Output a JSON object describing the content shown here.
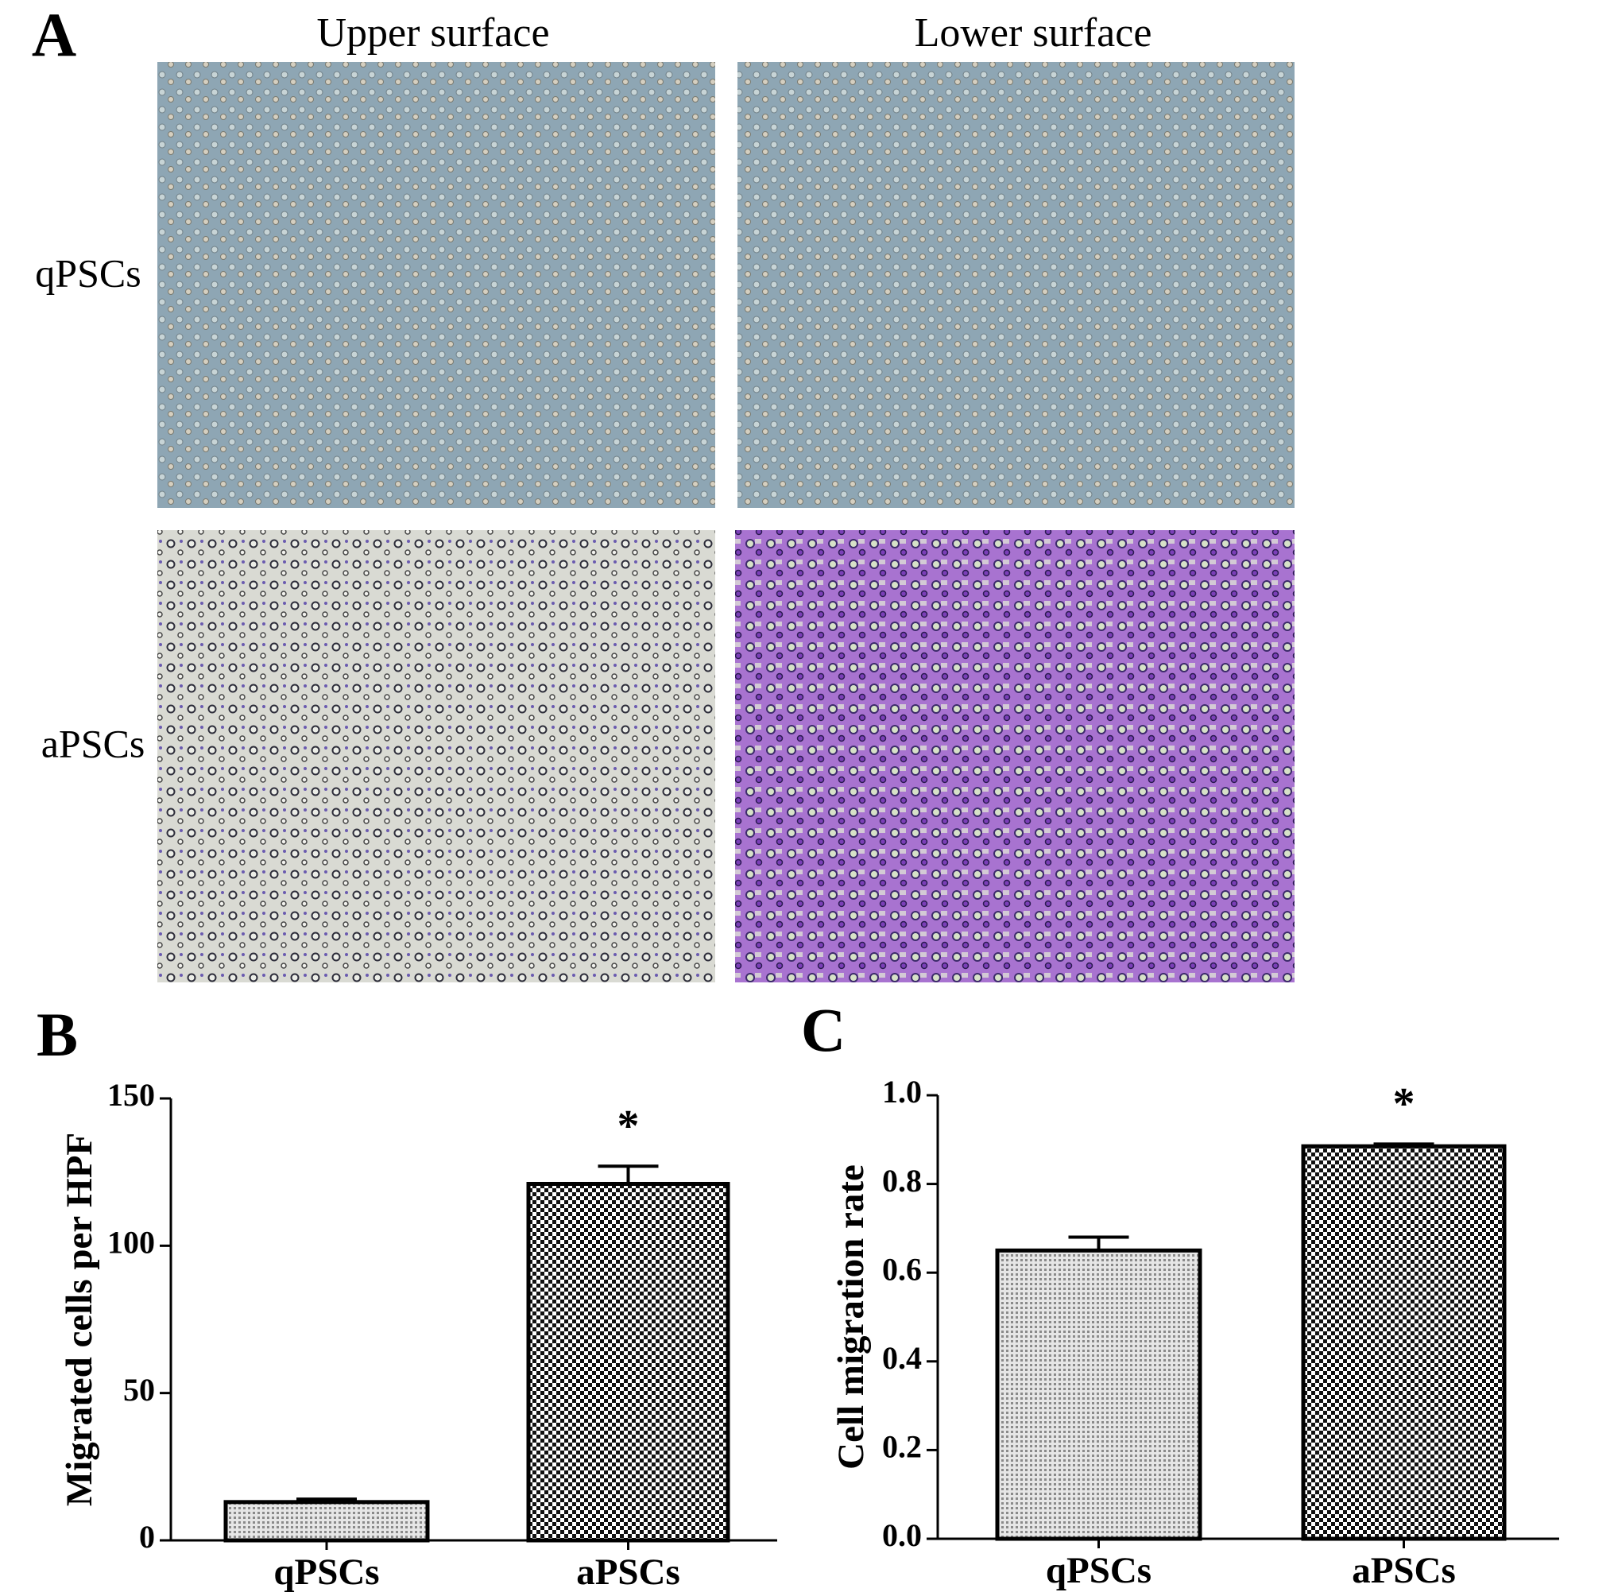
{
  "panel_a": {
    "label": "A",
    "columns": [
      "Upper surface",
      "Lower surface"
    ],
    "rows": [
      "qPSCs",
      "aPSCs"
    ]
  },
  "chart_data": [
    {
      "type": "bar",
      "panel_label": "B",
      "ylabel": "Migrated cells per HPF",
      "categories": [
        "qPSCs",
        "aPSCs"
      ],
      "values": [
        13,
        121
      ],
      "errors": [
        1,
        6
      ],
      "significance": [
        null,
        "*"
      ],
      "color": "#000000",
      "ylim": [
        0,
        150
      ],
      "yticks": [
        0,
        50,
        100,
        150
      ]
    },
    {
      "type": "bar",
      "panel_label": "C",
      "ylabel": "Cell migration rate",
      "categories": [
        "qPSCs",
        "aPSCs"
      ],
      "values": [
        0.65,
        0.885
      ],
      "errors": [
        0.03,
        0.005
      ],
      "significance": [
        null,
        "*"
      ],
      "color": "#000000",
      "ylim": [
        0,
        1.0
      ],
      "yticks": [
        {
          "value": 0,
          "label": "0.0"
        },
        0.2,
        0.4,
        0.6,
        0.8,
        {
          "value": 1.0,
          "label": "1.0"
        }
      ]
    }
  ]
}
